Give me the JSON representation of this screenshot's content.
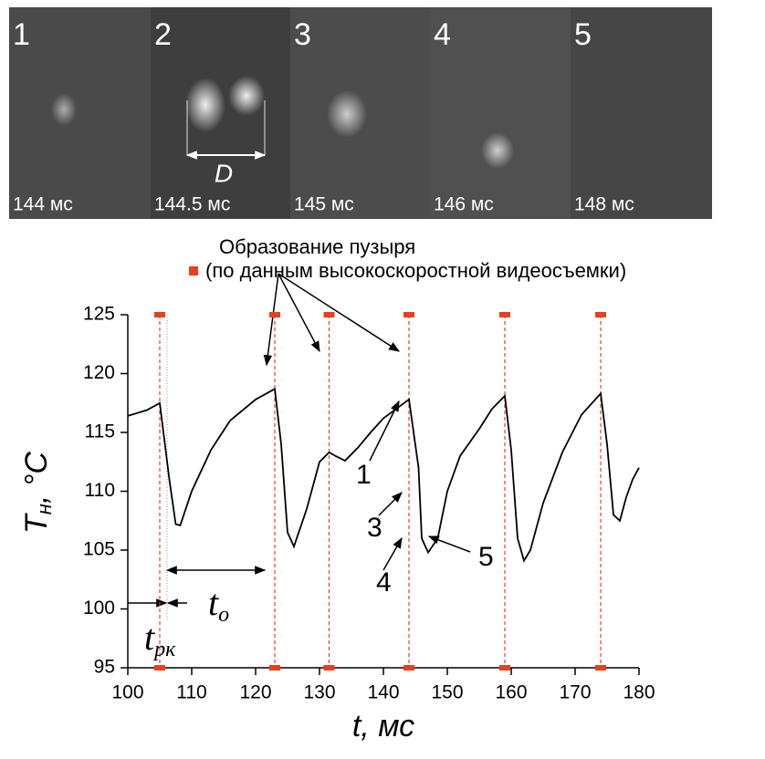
{
  "frames": [
    {
      "number": "1",
      "time": "144 мс"
    },
    {
      "number": "2",
      "time": "144.5 мс"
    },
    {
      "number": "3",
      "time": "145 мс"
    },
    {
      "number": "4",
      "time": "146 мс"
    },
    {
      "number": "5",
      "time": "148 мс"
    }
  ],
  "frame_label": "D",
  "chart_data": {
    "type": "line",
    "legend": [
      "Образование пузыря",
      "(по данным высокоскоростной видеосъемки)"
    ],
    "ylabel": "T",
    "ylabel_sub": "н",
    "ylabel_unit": ", °C",
    "xlabel": "t, мс",
    "x": [
      100,
      103,
      105,
      106.5,
      107.5,
      108.2,
      110,
      113,
      116,
      120,
      123,
      124,
      125,
      126,
      128,
      130,
      131.5,
      132.5,
      134,
      136,
      138,
      140,
      142,
      144,
      145.5,
      146,
      147,
      148.5,
      150,
      152,
      155,
      157,
      159,
      160,
      161,
      162,
      163,
      165,
      168,
      171,
      174,
      175,
      176,
      177,
      178,
      179,
      180
    ],
    "series": [
      {
        "color": "#000000",
        "values": [
          116.4,
          116.9,
          117.5,
          111,
          107.2,
          107.1,
          110,
          113.5,
          116,
          117.8,
          118.7,
          114,
          106.5,
          105.3,
          108.5,
          112.5,
          113.3,
          113,
          112.6,
          113.7,
          115,
          116.2,
          117,
          117.8,
          112,
          106,
          104.8,
          106,
          110,
          113,
          115.3,
          117,
          118.1,
          113.5,
          106,
          104.1,
          105,
          109,
          113.3,
          116.5,
          118.3,
          114,
          108,
          107.5,
          109.5,
          111,
          112
        ]
      }
    ],
    "events": {
      "color": "#e8401c",
      "x": [
        105,
        123,
        131.5,
        144,
        159,
        174
      ]
    },
    "xlim": [
      100,
      180
    ],
    "ylim": [
      95,
      125
    ],
    "xticks": [
      100,
      110,
      120,
      130,
      140,
      150,
      160,
      170,
      180
    ],
    "yticks": [
      95,
      100,
      105,
      110,
      115,
      120,
      125
    ],
    "annotations": [
      {
        "text": "1"
      },
      {
        "text": "3"
      },
      {
        "text": "4"
      },
      {
        "text": "5"
      },
      {
        "text": "t",
        "sub": "o"
      },
      {
        "text": "t",
        "sub": "рк"
      }
    ]
  }
}
